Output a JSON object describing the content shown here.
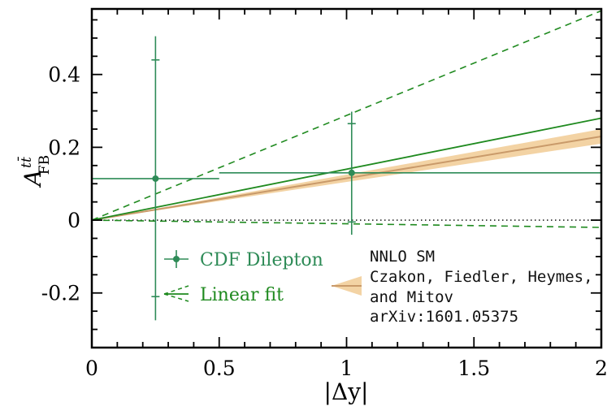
{
  "colors": {
    "data": "#2e8b57",
    "fit": "#1f8a1f",
    "band": "#f3d3a4",
    "band_center": "#c99a6a",
    "axis": "#000000"
  },
  "chart_data": {
    "type": "scatter",
    "title": "",
    "xlabel": "|Δy|",
    "ylabel": "A_FB^{tt̄}",
    "ylabel_main": "A",
    "ylabel_super": "tt̄",
    "ylabel_sub": "FB",
    "xlim": [
      0,
      2
    ],
    "ylim": [
      -0.35,
      0.58
    ],
    "x_ticks": [
      0,
      0.5,
      1,
      1.5,
      2
    ],
    "x_tick_labels": [
      "0",
      "0.5",
      "1",
      "1.5",
      "2"
    ],
    "y_ticks": [
      -0.2,
      0,
      0.2,
      0.4
    ],
    "y_tick_labels": [
      "-0.2",
      "0",
      "0.2",
      "0.4"
    ],
    "series": [
      {
        "name": "CDF Dilepton",
        "kind": "points",
        "points": [
          {
            "x": 0.25,
            "xlow": 0,
            "xhigh": 0.5,
            "y": 0.114,
            "stat_low": -0.21,
            "stat_high": 0.44,
            "tot_low": -0.275,
            "tot_high": 0.505
          },
          {
            "x": 1.02,
            "xlow": 0.5,
            "xhigh": 2.0,
            "y": 0.13,
            "stat_low": -0.005,
            "stat_high": 0.265,
            "tot_low": -0.04,
            "tot_high": 0.298
          }
        ]
      },
      {
        "name": "Linear fit",
        "kind": "lines",
        "central": [
          [
            0,
            0
          ],
          [
            2,
            0.28
          ]
        ],
        "upper": [
          [
            0,
            0
          ],
          [
            2,
            0.575
          ]
        ],
        "lower": [
          [
            0,
            0
          ],
          [
            2,
            -0.02
          ]
        ]
      },
      {
        "name": "NNLO SM",
        "kind": "band",
        "center": [
          [
            0,
            0
          ],
          [
            2,
            0.23
          ]
        ],
        "band_low": [
          [
            0,
            0
          ],
          [
            2,
            0.21
          ]
        ],
        "band_high": [
          [
            0,
            0
          ],
          [
            2,
            0.25
          ]
        ]
      }
    ],
    "reference_line": {
      "y": 0,
      "style": "dotted"
    }
  },
  "legend": {
    "data_label": "CDF Dilepton",
    "fit_label": "Linear fit"
  },
  "annotation": {
    "line1": "NNLO SM",
    "line2": "Czakon, Fiedler, Heymes,",
    "line3": "and Mitov",
    "line4": "arXiv:1601.05375"
  }
}
